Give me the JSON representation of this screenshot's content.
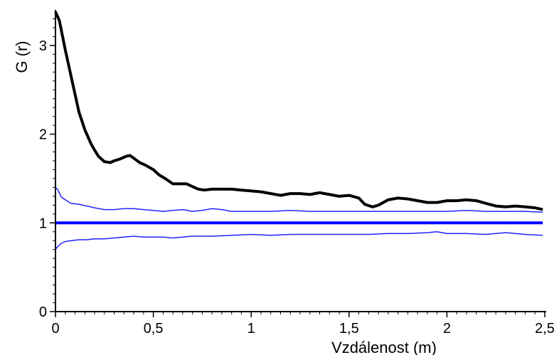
{
  "chart_data": {
    "type": "line",
    "xlabel": "Vzdálenost (m)",
    "ylabel": "G (r)",
    "xlim": [
      0,
      2.5
    ],
    "ylim": [
      0,
      3.4
    ],
    "x_ticks": [
      {
        "value": 0,
        "label": "0"
      },
      {
        "value": 0.5,
        "label": "0,5"
      },
      {
        "value": 1,
        "label": "1"
      },
      {
        "value": 1.5,
        "label": "1,5"
      },
      {
        "value": 2,
        "label": "2"
      },
      {
        "value": 2.5,
        "label": "2,5"
      }
    ],
    "y_ticks": [
      {
        "value": 0,
        "label": "0"
      },
      {
        "value": 1,
        "label": "1"
      },
      {
        "value": 2,
        "label": "2"
      },
      {
        "value": 3,
        "label": "3"
      }
    ],
    "grid": false,
    "legend": "none",
    "series": [
      {
        "color": "#000000",
        "style": "thick",
        "x": [
          0,
          0.02,
          0.05,
          0.08,
          0.1,
          0.12,
          0.15,
          0.18,
          0.2,
          0.22,
          0.25,
          0.28,
          0.3,
          0.33,
          0.36,
          0.38,
          0.4,
          0.43,
          0.46,
          0.5,
          0.53,
          0.56,
          0.6,
          0.63,
          0.67,
          0.7,
          0.73,
          0.76,
          0.8,
          0.85,
          0.9,
          0.95,
          1.0,
          1.05,
          1.1,
          1.15,
          1.2,
          1.25,
          1.3,
          1.35,
          1.4,
          1.45,
          1.5,
          1.55,
          1.58,
          1.62,
          1.65,
          1.7,
          1.75,
          1.8,
          1.85,
          1.9,
          1.95,
          2.0,
          2.05,
          2.1,
          2.15,
          2.2,
          2.25,
          2.3,
          2.35,
          2.4,
          2.45,
          2.49
        ],
        "y": [
          3.38,
          3.28,
          2.95,
          2.65,
          2.45,
          2.25,
          2.05,
          1.9,
          1.82,
          1.75,
          1.69,
          1.68,
          1.7,
          1.72,
          1.75,
          1.76,
          1.73,
          1.68,
          1.65,
          1.6,
          1.54,
          1.5,
          1.44,
          1.44,
          1.44,
          1.41,
          1.38,
          1.37,
          1.38,
          1.38,
          1.38,
          1.37,
          1.36,
          1.35,
          1.33,
          1.31,
          1.33,
          1.33,
          1.32,
          1.34,
          1.32,
          1.3,
          1.31,
          1.28,
          1.21,
          1.18,
          1.2,
          1.26,
          1.28,
          1.27,
          1.25,
          1.23,
          1.23,
          1.25,
          1.25,
          1.26,
          1.25,
          1.22,
          1.19,
          1.18,
          1.19,
          1.18,
          1.17,
          1.15
        ]
      },
      {
        "color": "#0000ff",
        "style": "thick",
        "x": [
          0,
          2.49
        ],
        "y": [
          1.0,
          1.0
        ]
      },
      {
        "color": "#2222ff",
        "style": "thin",
        "x": [
          0,
          0.01,
          0.03,
          0.05,
          0.08,
          0.12,
          0.16,
          0.2,
          0.25,
          0.3,
          0.35,
          0.4,
          0.45,
          0.5,
          0.55,
          0.6,
          0.65,
          0.7,
          0.75,
          0.8,
          0.85,
          0.9,
          1.0,
          1.1,
          1.2,
          1.3,
          1.4,
          1.5,
          1.6,
          1.7,
          1.8,
          1.9,
          2.0,
          2.1,
          2.2,
          2.3,
          2.4,
          2.49
        ],
        "y": [
          1.4,
          1.38,
          1.29,
          1.26,
          1.22,
          1.21,
          1.19,
          1.17,
          1.15,
          1.15,
          1.16,
          1.16,
          1.15,
          1.14,
          1.13,
          1.14,
          1.15,
          1.13,
          1.14,
          1.16,
          1.15,
          1.13,
          1.13,
          1.13,
          1.14,
          1.13,
          1.13,
          1.13,
          1.13,
          1.13,
          1.13,
          1.13,
          1.13,
          1.14,
          1.13,
          1.13,
          1.13,
          1.12
        ]
      },
      {
        "color": "#2222ff",
        "style": "thin",
        "x": [
          0,
          0.01,
          0.03,
          0.05,
          0.08,
          0.12,
          0.16,
          0.2,
          0.25,
          0.3,
          0.35,
          0.4,
          0.45,
          0.5,
          0.55,
          0.6,
          0.65,
          0.7,
          0.8,
          0.9,
          1.0,
          1.1,
          1.2,
          1.3,
          1.4,
          1.5,
          1.6,
          1.7,
          1.8,
          1.9,
          1.95,
          2.0,
          2.1,
          2.2,
          2.3,
          2.4,
          2.49
        ],
        "y": [
          0.7,
          0.73,
          0.77,
          0.79,
          0.8,
          0.81,
          0.81,
          0.82,
          0.82,
          0.83,
          0.84,
          0.85,
          0.84,
          0.84,
          0.84,
          0.83,
          0.84,
          0.85,
          0.85,
          0.86,
          0.87,
          0.86,
          0.87,
          0.87,
          0.87,
          0.87,
          0.87,
          0.88,
          0.88,
          0.89,
          0.9,
          0.88,
          0.88,
          0.87,
          0.89,
          0.87,
          0.86
        ]
      }
    ]
  }
}
